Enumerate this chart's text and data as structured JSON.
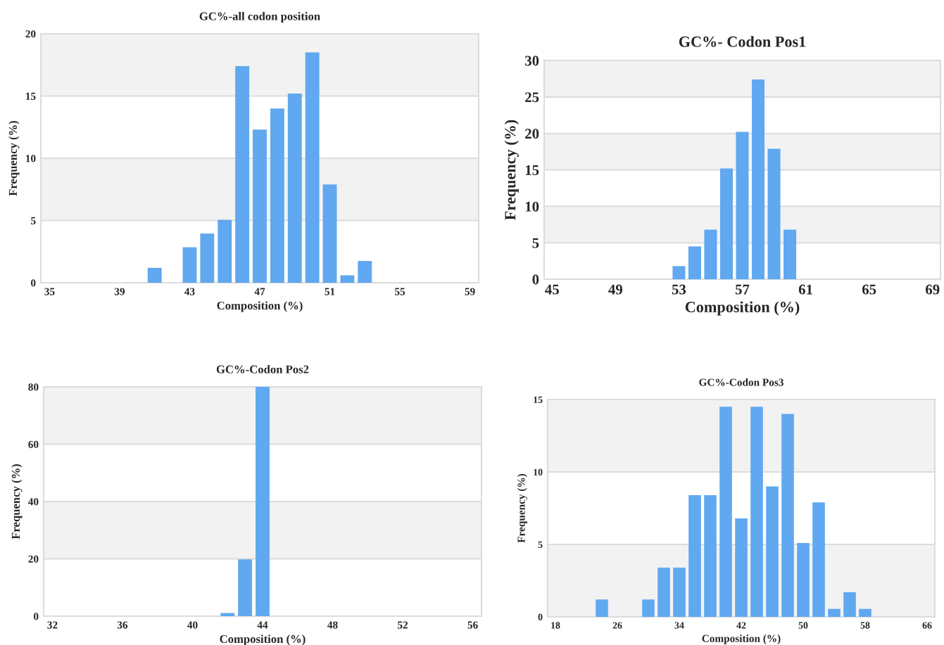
{
  "chart_data": [
    {
      "type": "histogram",
      "title": "GC%-all codon position",
      "xlabel": "Composition (%)",
      "ylabel": "Frequency (%)",
      "color": "#60a8f0",
      "bins": [
        40.5,
        41.5,
        42.5,
        43.5,
        44.5,
        45.5,
        46.5,
        47.5,
        48.5,
        49.5,
        50.5,
        51.5,
        52.5,
        53.5
      ],
      "values": [
        1.2,
        0,
        2.85,
        3.95,
        5.05,
        17.4,
        12.3,
        14.0,
        15.2,
        18.5,
        7.9,
        0.6,
        1.75
      ],
      "xlim": [
        34.5,
        59.5
      ],
      "xticks": [
        35,
        39,
        43,
        47,
        51,
        55,
        59
      ],
      "ylim": [
        0,
        20
      ],
      "yticks": [
        0,
        5,
        10,
        15,
        20
      ],
      "grid": "y"
    },
    {
      "type": "histogram",
      "title": "GC%- Codon Pos1",
      "xlabel": "Composition (%)",
      "ylabel": "Frequency (%)",
      "color": "#60a8f0",
      "bins": [
        52.5,
        53.5,
        54.5,
        55.5,
        56.5,
        57.5,
        58.5,
        59.5,
        60.5
      ],
      "values": [
        1.8,
        4.5,
        6.8,
        15.2,
        20.2,
        27.4,
        17.9,
        6.8
      ],
      "xlim": [
        44.5,
        69.5
      ],
      "xticks": [
        45,
        49,
        53,
        57,
        61,
        65,
        69
      ],
      "ylim": [
        0,
        30
      ],
      "yticks": [
        0,
        5,
        10,
        15,
        20,
        25,
        30
      ],
      "grid": "y"
    },
    {
      "type": "histogram",
      "title": "GC%-Codon Pos2",
      "xlabel": "Composition (%)",
      "ylabel": "Frequency (%)",
      "color": "#60a8f0",
      "bins": [
        41.5,
        42.5,
        43.5,
        44.5
      ],
      "values": [
        1.1,
        19.8,
        80
      ],
      "xlim": [
        31.5,
        56.5
      ],
      "xticks": [
        32,
        36,
        40,
        44,
        48,
        52,
        56
      ],
      "ylim": [
        0,
        80
      ],
      "yticks": [
        0,
        20,
        40,
        60,
        80
      ],
      "grid": "y"
    },
    {
      "type": "histogram",
      "title": "GC%-Codon Pos3",
      "xlabel": "Composition (%)",
      "ylabel": "Frequency (%)",
      "color": "#60a8f0",
      "bins": [
        23,
        25,
        27,
        29,
        31,
        33,
        35,
        37,
        39,
        41,
        43,
        45,
        47,
        49,
        51,
        53,
        55,
        57,
        59
      ],
      "values": [
        1.2,
        0,
        0,
        1.2,
        3.4,
        3.4,
        8.4,
        8.4,
        14.5,
        6.8,
        14.5,
        9.0,
        14.0,
        5.1,
        7.9,
        0.55,
        1.7,
        0.55
      ],
      "xlim": [
        17,
        67
      ],
      "xticks": [
        18,
        26,
        34,
        42,
        50,
        58,
        66
      ],
      "ylim": [
        0,
        15
      ],
      "yticks": [
        0,
        5,
        10,
        15
      ],
      "grid": "y"
    }
  ]
}
